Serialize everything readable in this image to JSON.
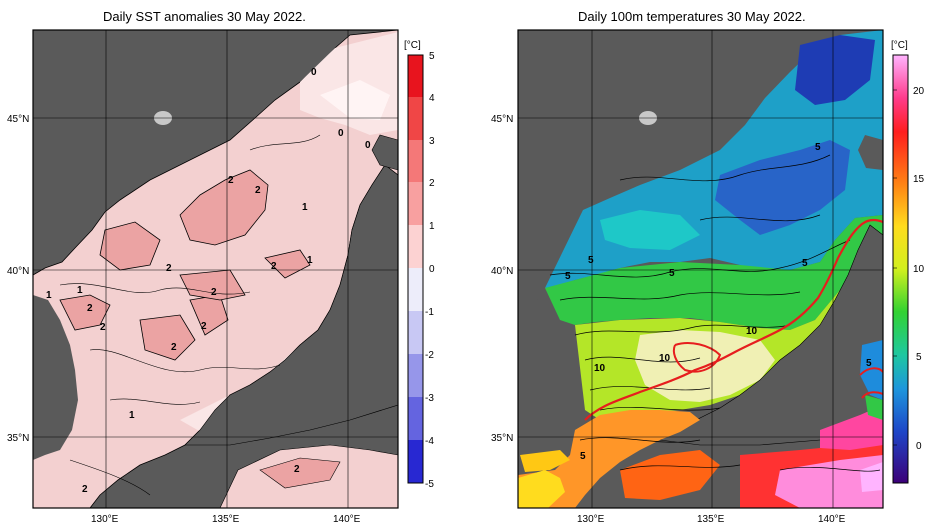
{
  "panels": [
    {
      "id": "sst-anomaly",
      "title": "Daily SST anomalies 30 May 2022.",
      "lat_labels": [
        "45°N",
        "40°N",
        "35°N"
      ],
      "lon_labels": [
        "130°E",
        "135°E",
        "140°E"
      ],
      "colorbar": {
        "unit": "[°C]",
        "ticks": [
          "5",
          "4",
          "3",
          "2",
          "1",
          "0",
          "-1",
          "-2",
          "-3",
          "-4",
          "-5"
        ],
        "colors": [
          "#e8141e",
          "#f03c3c",
          "#f46464",
          "#f78c8c",
          "#fab4b4",
          "#fcdcdc",
          "#dcdcf8",
          "#b4b4f0",
          "#8c8ce6",
          "#5a5adc",
          "#2828d2"
        ]
      },
      "contour_labels": [
        "0",
        "0",
        "0",
        "2",
        "2",
        "1",
        "2",
        "2",
        "1",
        "2",
        "1",
        "1",
        "2",
        "2",
        "2",
        "2",
        "1",
        "2",
        "2"
      ]
    },
    {
      "id": "temp-100m",
      "title": "Daily 100m temperatures 30 May 2022.",
      "lat_labels": [
        "45°N",
        "40°N",
        "35°N"
      ],
      "lon_labels": [
        "130°E",
        "135°E",
        "140°E"
      ],
      "colorbar": {
        "unit": "[°C]",
        "ticks": [
          "20",
          "15",
          "10",
          "5",
          "0"
        ],
        "colors": [
          "#ffb4ff",
          "#ff3278",
          "#ff1e1e",
          "#ff7814",
          "#ffc814",
          "#ffff1e",
          "#c8f01e",
          "#32d232",
          "#1ec864",
          "#1eb4b4",
          "#1e8cdc",
          "#1e50c8",
          "#2814a0",
          "#3c0078"
        ]
      },
      "contour_labels": [
        "5",
        "5",
        "5",
        "5",
        "5",
        "10",
        "10",
        "10",
        "5",
        "5"
      ]
    }
  ]
}
